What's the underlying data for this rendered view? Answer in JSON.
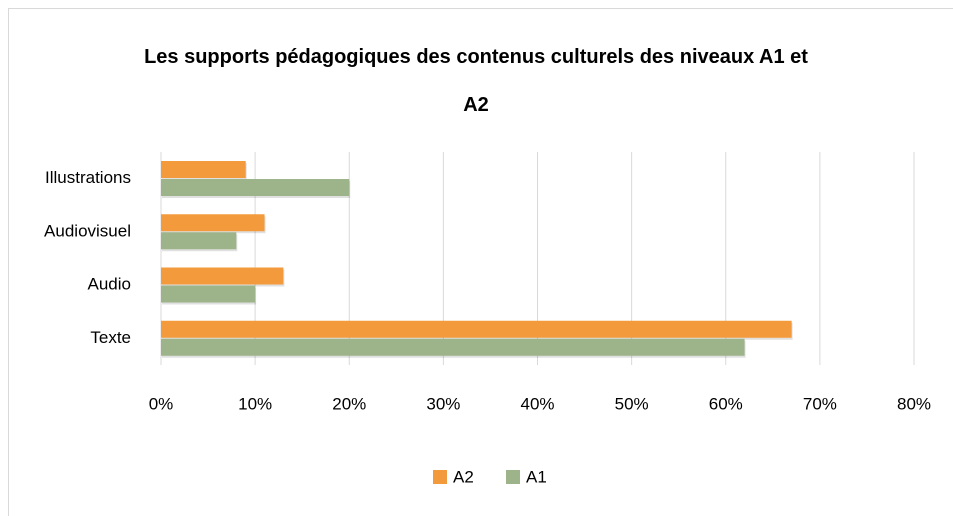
{
  "chart_data": {
    "type": "bar",
    "orientation": "horizontal",
    "title": "Les supports pédagogiques des contenus culturels des niveaux A1 et A2",
    "categories": [
      "Illustrations",
      "Audiovisuel",
      "Audio",
      "Texte"
    ],
    "series": [
      {
        "name": "A2",
        "color": "#f39a3c",
        "values": [
          9,
          11,
          13,
          67
        ]
      },
      {
        "name": "A1",
        "color": "#9db38a",
        "values": [
          20,
          8,
          10,
          62
        ]
      }
    ],
    "xlim": [
      0,
      80
    ],
    "xticks": [
      {
        "value": 0,
        "label": "0%"
      },
      {
        "value": 10,
        "label": "10%"
      },
      {
        "value": 20,
        "label": "20%"
      },
      {
        "value": 30,
        "label": "30%"
      },
      {
        "value": 40,
        "label": "40%"
      },
      {
        "value": 50,
        "label": "50%"
      },
      {
        "value": 60,
        "label": "60%"
      },
      {
        "value": 70,
        "label": "70%"
      },
      {
        "value": 80,
        "label": "80%"
      }
    ],
    "grid": true,
    "legend": "bottom"
  }
}
